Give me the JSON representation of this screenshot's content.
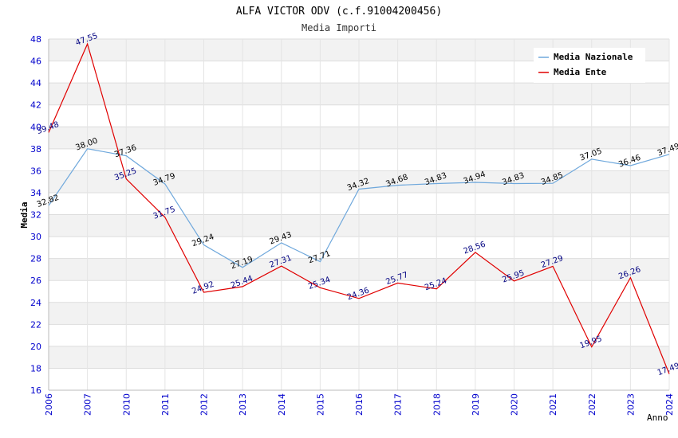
{
  "chart_data": {
    "type": "line",
    "title": "ALFA VICTOR ODV (c.f.91004200456)",
    "subtitle": "Media Importi",
    "xlabel": "Anno",
    "ylabel": "Media",
    "ylim": [
      16,
      48
    ],
    "yticks": [
      16,
      18,
      20,
      22,
      24,
      26,
      28,
      30,
      32,
      34,
      36,
      38,
      40,
      42,
      44,
      46,
      48
    ],
    "x": [
      "2006",
      "2007",
      "2010",
      "2011",
      "2012",
      "2013",
      "2014",
      "2015",
      "2016",
      "2017",
      "2018",
      "2019",
      "2020",
      "2021",
      "2022",
      "2023",
      "2024"
    ],
    "legend_position": "top-right",
    "grid": true,
    "series": [
      {
        "name": "Media Nazionale",
        "color": "#6fa8dc",
        "label_color": "#000000",
        "values": [
          32.82,
          38.0,
          37.36,
          34.79,
          29.24,
          27.19,
          29.43,
          27.71,
          34.32,
          34.68,
          34.83,
          34.94,
          34.83,
          34.85,
          37.05,
          36.46,
          37.49
        ],
        "labels": [
          "32.82",
          "38.00",
          "37.36",
          "34.79",
          "29.24",
          "27.19",
          "29.43",
          "27.71",
          "34.32",
          "34.68",
          "34.83",
          "34.94",
          "34.83",
          "34.85",
          "37.05",
          "36.46",
          "37.49"
        ]
      },
      {
        "name": "Media Ente",
        "color": "#e00000",
        "label_color": "#000080",
        "values": [
          39.48,
          47.55,
          35.25,
          31.75,
          24.92,
          25.44,
          27.31,
          25.34,
          24.36,
          25.77,
          25.24,
          28.56,
          25.95,
          27.29,
          19.95,
          26.26,
          17.49
        ],
        "labels": [
          "39.48",
          "47.55",
          "35.25",
          "31.75",
          "24.92",
          "25.44",
          "27.31",
          "25.34",
          "24.36",
          "25.77",
          "25.24",
          "28.56",
          "25.95",
          "27.29",
          "19.95",
          "26.26",
          "17.49"
        ]
      }
    ]
  }
}
